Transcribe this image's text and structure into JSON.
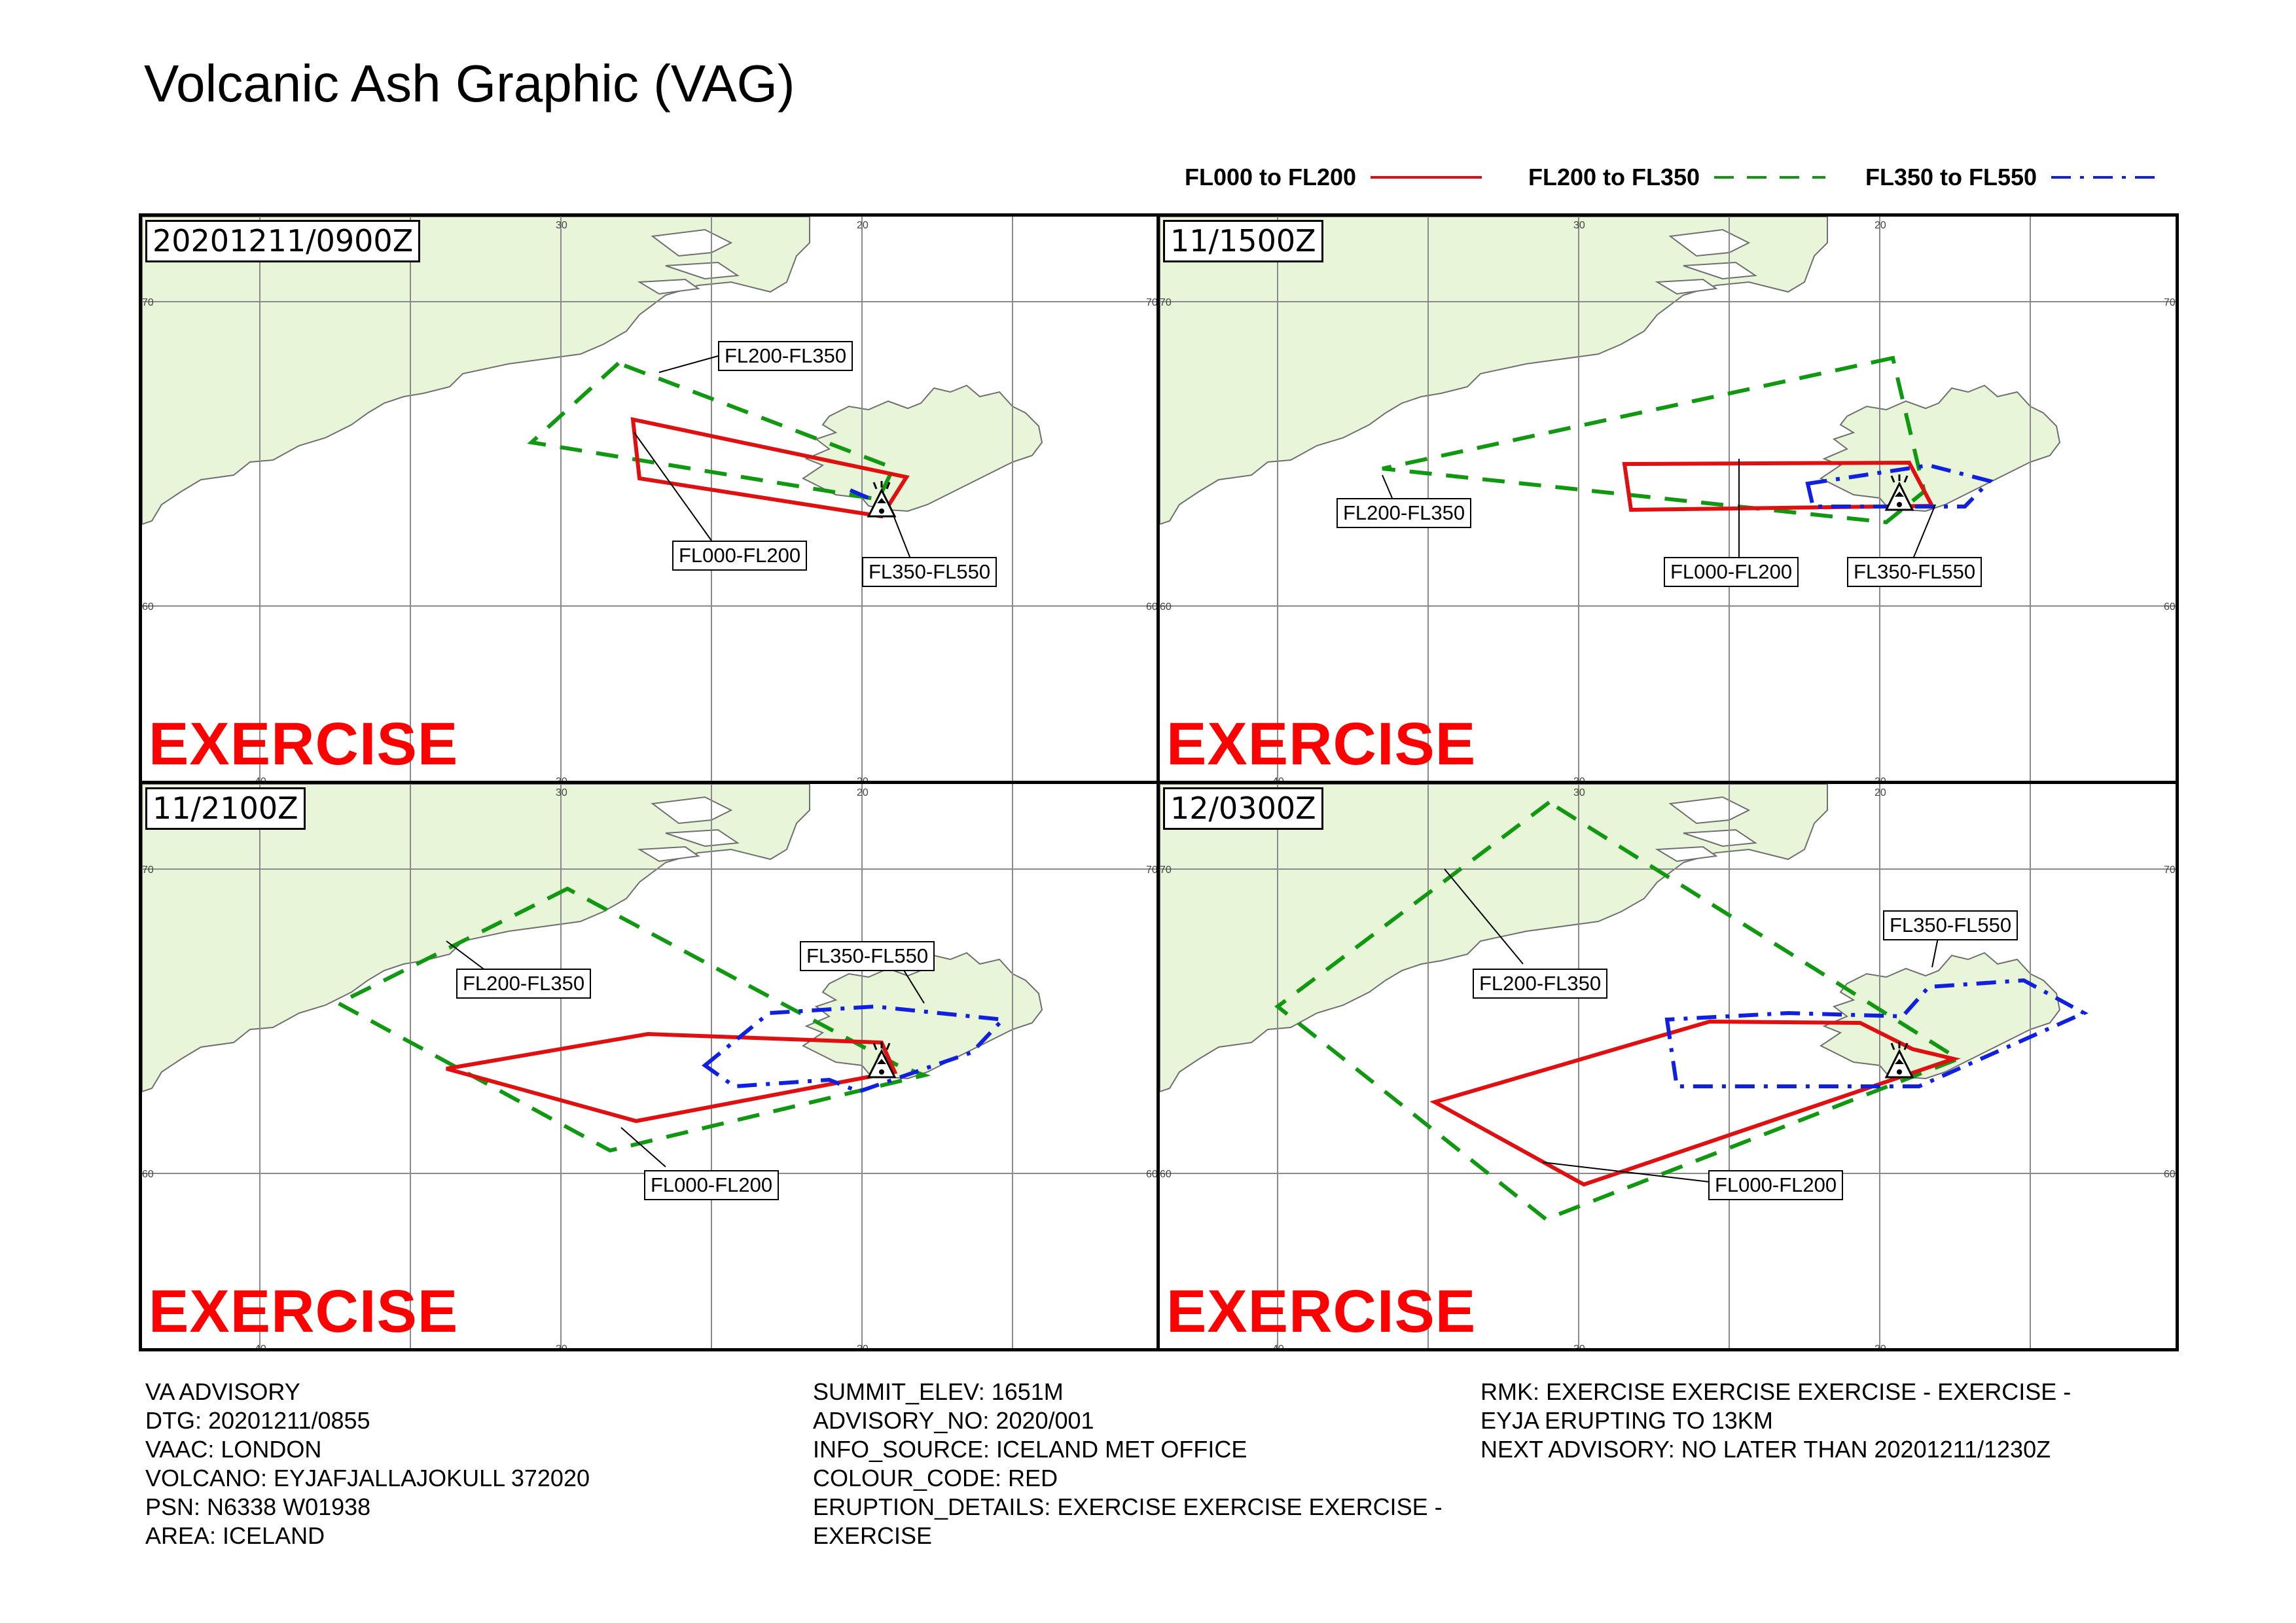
{
  "title": "Volcanic Ash Graphic (VAG)",
  "legend": [
    {
      "label": "FL000 to FL200",
      "color": "#e01010",
      "style": "solid"
    },
    {
      "label": "FL200 to FL350",
      "color": "#109910",
      "style": "dashed"
    },
    {
      "label": "FL350 to FL550",
      "color": "#1020e0",
      "style": "dashdot"
    }
  ],
  "panels": [
    {
      "time": "20201211/0900Z",
      "stamp": "EXERCISE",
      "labels": {
        "fl000": "FL000-FL200",
        "fl200": "FL200-FL350",
        "fl350": "FL350-FL550"
      }
    },
    {
      "time": "11/1500Z",
      "stamp": "EXERCISE",
      "labels": {
        "fl000": "FL000-FL200",
        "fl200": "FL200-FL350",
        "fl350": "FL350-FL550"
      }
    },
    {
      "time": "11/2100Z",
      "stamp": "EXERCISE",
      "labels": {
        "fl000": "FL000-FL200",
        "fl200": "FL200-FL350",
        "fl350": "FL350-FL550"
      }
    },
    {
      "time": "12/0300Z",
      "stamp": "EXERCISE",
      "labels": {
        "fl000": "FL000-FL200",
        "fl200": "FL200-FL350",
        "fl350": "FL350-FL550"
      }
    }
  ],
  "grid_labels": {
    "lon": [
      "40",
      "30",
      "20"
    ],
    "lat": [
      "70",
      "60"
    ]
  },
  "colors": {
    "land": "#e8f5d8",
    "coast": "#6f6f6f",
    "grid": "#8a8a8a",
    "exercise": "#ff0000"
  },
  "advisory": {
    "col1": [
      "VA ADVISORY",
      "DTG: 20201211/0855",
      "VAAC: LONDON",
      "VOLCANO: EYJAFJALLAJOKULL 372020",
      "PSN: N6338 W01938",
      "AREA: ICELAND"
    ],
    "col2": [
      "SUMMIT_ELEV: 1651M",
      "ADVISORY_NO: 2020/001",
      "INFO_SOURCE: ICELAND MET OFFICE",
      "COLOUR_CODE: RED",
      "ERUPTION_DETAILS: EXERCISE EXERCISE EXERCISE -",
      "EXERCISE"
    ],
    "col3": [
      "RMK: EXERCISE EXERCISE EXERCISE - EXERCISE -",
      "EYJA ERUPTING TO 13KM",
      "NEXT ADVISORY: NO LATER THAN 20201211/1230Z"
    ]
  }
}
